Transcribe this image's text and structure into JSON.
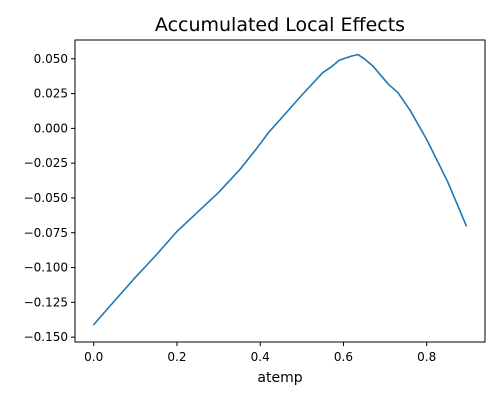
{
  "chart_data": {
    "type": "line",
    "title": "Accumulated Local Effects",
    "xlabel": "atemp",
    "ylabel": "",
    "xlim": [
      -0.045,
      0.94
    ],
    "ylim": [
      -0.1535,
      0.0635
    ],
    "x_ticks": [
      0.0,
      0.2,
      0.4,
      0.6,
      0.8
    ],
    "x_tick_labels": [
      "0.0",
      "0.2",
      "0.4",
      "0.6",
      "0.8"
    ],
    "y_ticks": [
      -0.15,
      -0.125,
      -0.1,
      -0.075,
      -0.05,
      -0.025,
      0.0,
      0.025,
      0.05
    ],
    "y_tick_labels": [
      "−0.150",
      "−0.125",
      "−0.100",
      "−0.075",
      "−0.050",
      "−0.025",
      "0.000",
      "0.025",
      "0.050"
    ],
    "grid": false,
    "legend": false,
    "series": [
      {
        "color": "#1f77b4",
        "x": [
          0.0,
          0.05,
          0.1,
          0.15,
          0.2,
          0.25,
          0.3,
          0.35,
          0.39,
          0.42,
          0.45,
          0.5,
          0.55,
          0.57,
          0.59,
          0.61,
          0.62,
          0.635,
          0.65,
          0.67,
          0.69,
          0.71,
          0.73,
          0.76,
          0.8,
          0.85,
          0.895
        ],
        "y": [
          -0.141,
          -0.124,
          -0.107,
          -0.091,
          -0.074,
          -0.06,
          -0.046,
          -0.03,
          -0.015,
          -0.003,
          0.007,
          0.024,
          0.04,
          0.044,
          0.049,
          0.051,
          0.052,
          0.053,
          0.05,
          0.045,
          0.038,
          0.031,
          0.026,
          0.013,
          -0.008,
          -0.038,
          -0.07
        ]
      }
    ]
  }
}
